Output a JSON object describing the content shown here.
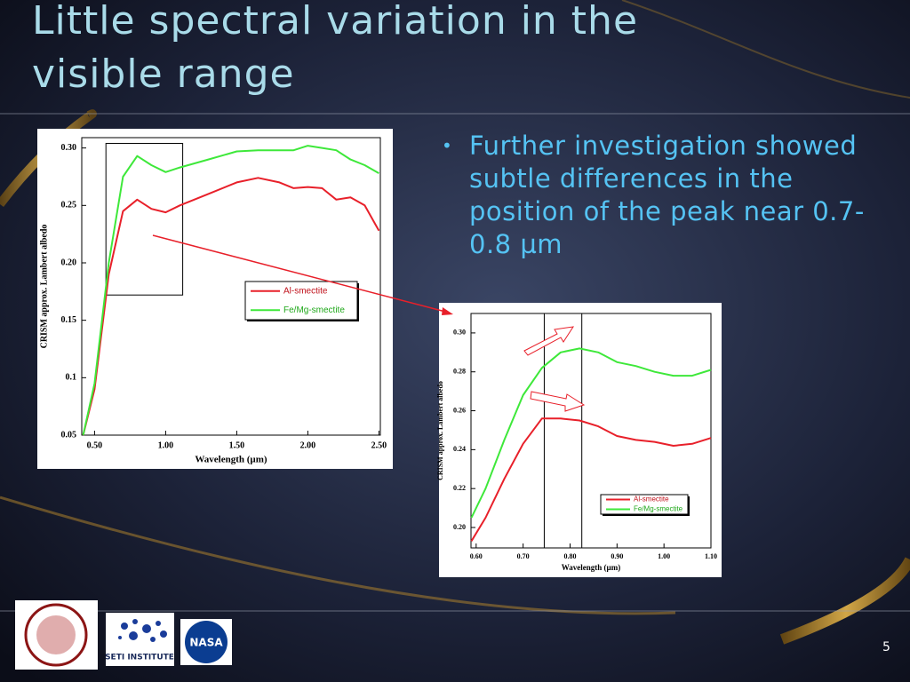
{
  "title": "Little spectral variation in the visible range",
  "bullet": "Further investigation showed subtle differences in the position of the peak near 0.7-0.8 µm",
  "page_number": "5",
  "logos": {
    "seti": "SETI INSTITUTE",
    "nasa": "NASA"
  },
  "chart_data": [
    {
      "type": "line",
      "xlabel": "Wavelength (µm)",
      "ylabel": "CRISM approx. Lambert albedo",
      "x": [
        0.42,
        0.5,
        0.6,
        0.7,
        0.8,
        0.9,
        1.0,
        1.1,
        1.3,
        1.5,
        1.65,
        1.8,
        1.9,
        2.0,
        2.1,
        2.2,
        2.3,
        2.4,
        2.5
      ],
      "series": [
        {
          "name": "Al-smectite",
          "color": "#e8202a",
          "values": [
            0.05,
            0.09,
            0.19,
            0.245,
            0.255,
            0.247,
            0.244,
            0.25,
            0.26,
            0.27,
            0.274,
            0.27,
            0.265,
            0.266,
            0.265,
            0.255,
            0.257,
            0.25,
            0.228
          ]
        },
        {
          "name": "Fe/Mg-smectite",
          "color": "#3ee83a",
          "values": [
            0.05,
            0.095,
            0.2,
            0.275,
            0.293,
            0.285,
            0.279,
            0.283,
            0.29,
            0.297,
            0.298,
            0.298,
            0.298,
            0.302,
            0.3,
            0.298,
            0.29,
            0.285,
            0.278
          ]
        }
      ],
      "xlim": [
        0.41,
        2.51
      ],
      "ylim": [
        0.05,
        0.309
      ],
      "xticks": [
        {
          "value": 0.5,
          "label": "0.50"
        },
        {
          "value": 1.0,
          "label": "1.00"
        },
        {
          "value": 1.5,
          "label": "1.50"
        },
        {
          "value": 2.0,
          "label": "2.00"
        },
        {
          "value": 2.5,
          "label": "2.50"
        }
      ],
      "yticks": [
        {
          "value": 0.05,
          "label": "0.05"
        },
        0.1,
        {
          "value": 0.15,
          "label": "0.15"
        },
        {
          "value": 0.2,
          "label": "0.20"
        },
        {
          "value": 0.25,
          "label": "0.25"
        },
        {
          "value": 0.3,
          "label": "0.30"
        }
      ],
      "legend": "center right",
      "zoom_box": {
        "x": [
          0.58,
          1.12
        ],
        "y": [
          0.172,
          0.304
        ]
      }
    },
    {
      "type": "line",
      "xlabel": "Wavelength (µm)",
      "ylabel": "CRISM approx. Lambert albedo",
      "x": [
        0.59,
        0.62,
        0.66,
        0.7,
        0.74,
        0.78,
        0.82,
        0.86,
        0.9,
        0.94,
        0.98,
        1.02,
        1.06,
        1.1
      ],
      "series": [
        {
          "name": "Al-smectite",
          "color": "#e8202a",
          "values": [
            0.193,
            0.205,
            0.225,
            0.243,
            0.256,
            0.256,
            0.255,
            0.252,
            0.247,
            0.245,
            0.244,
            0.242,
            0.243,
            0.246
          ]
        },
        {
          "name": "Fe/Mg-smectite",
          "color": "#3ee83a",
          "values": [
            0.205,
            0.22,
            0.245,
            0.268,
            0.282,
            0.29,
            0.292,
            0.29,
            0.285,
            0.283,
            0.28,
            0.278,
            0.278,
            0.281
          ]
        }
      ],
      "xlim": [
        0.589,
        1.1
      ],
      "ylim": [
        0.1895,
        0.31
      ],
      "xticks": [
        {
          "value": 0.6,
          "label": "0.60"
        },
        {
          "value": 0.7,
          "label": "0.70"
        },
        {
          "value": 0.8,
          "label": "0.80"
        },
        {
          "value": 0.9,
          "label": "0.90"
        },
        {
          "value": 1.0,
          "label": "1.00"
        },
        {
          "value": 1.1,
          "label": "1.10"
        }
      ],
      "yticks": [
        {
          "value": 0.2,
          "label": "0.20"
        },
        0.22,
        0.24,
        0.26,
        0.28,
        {
          "value": 0.3,
          "label": "0.30"
        }
      ],
      "legend": "lower right",
      "markers": [
        0.745,
        0.825
      ]
    }
  ]
}
